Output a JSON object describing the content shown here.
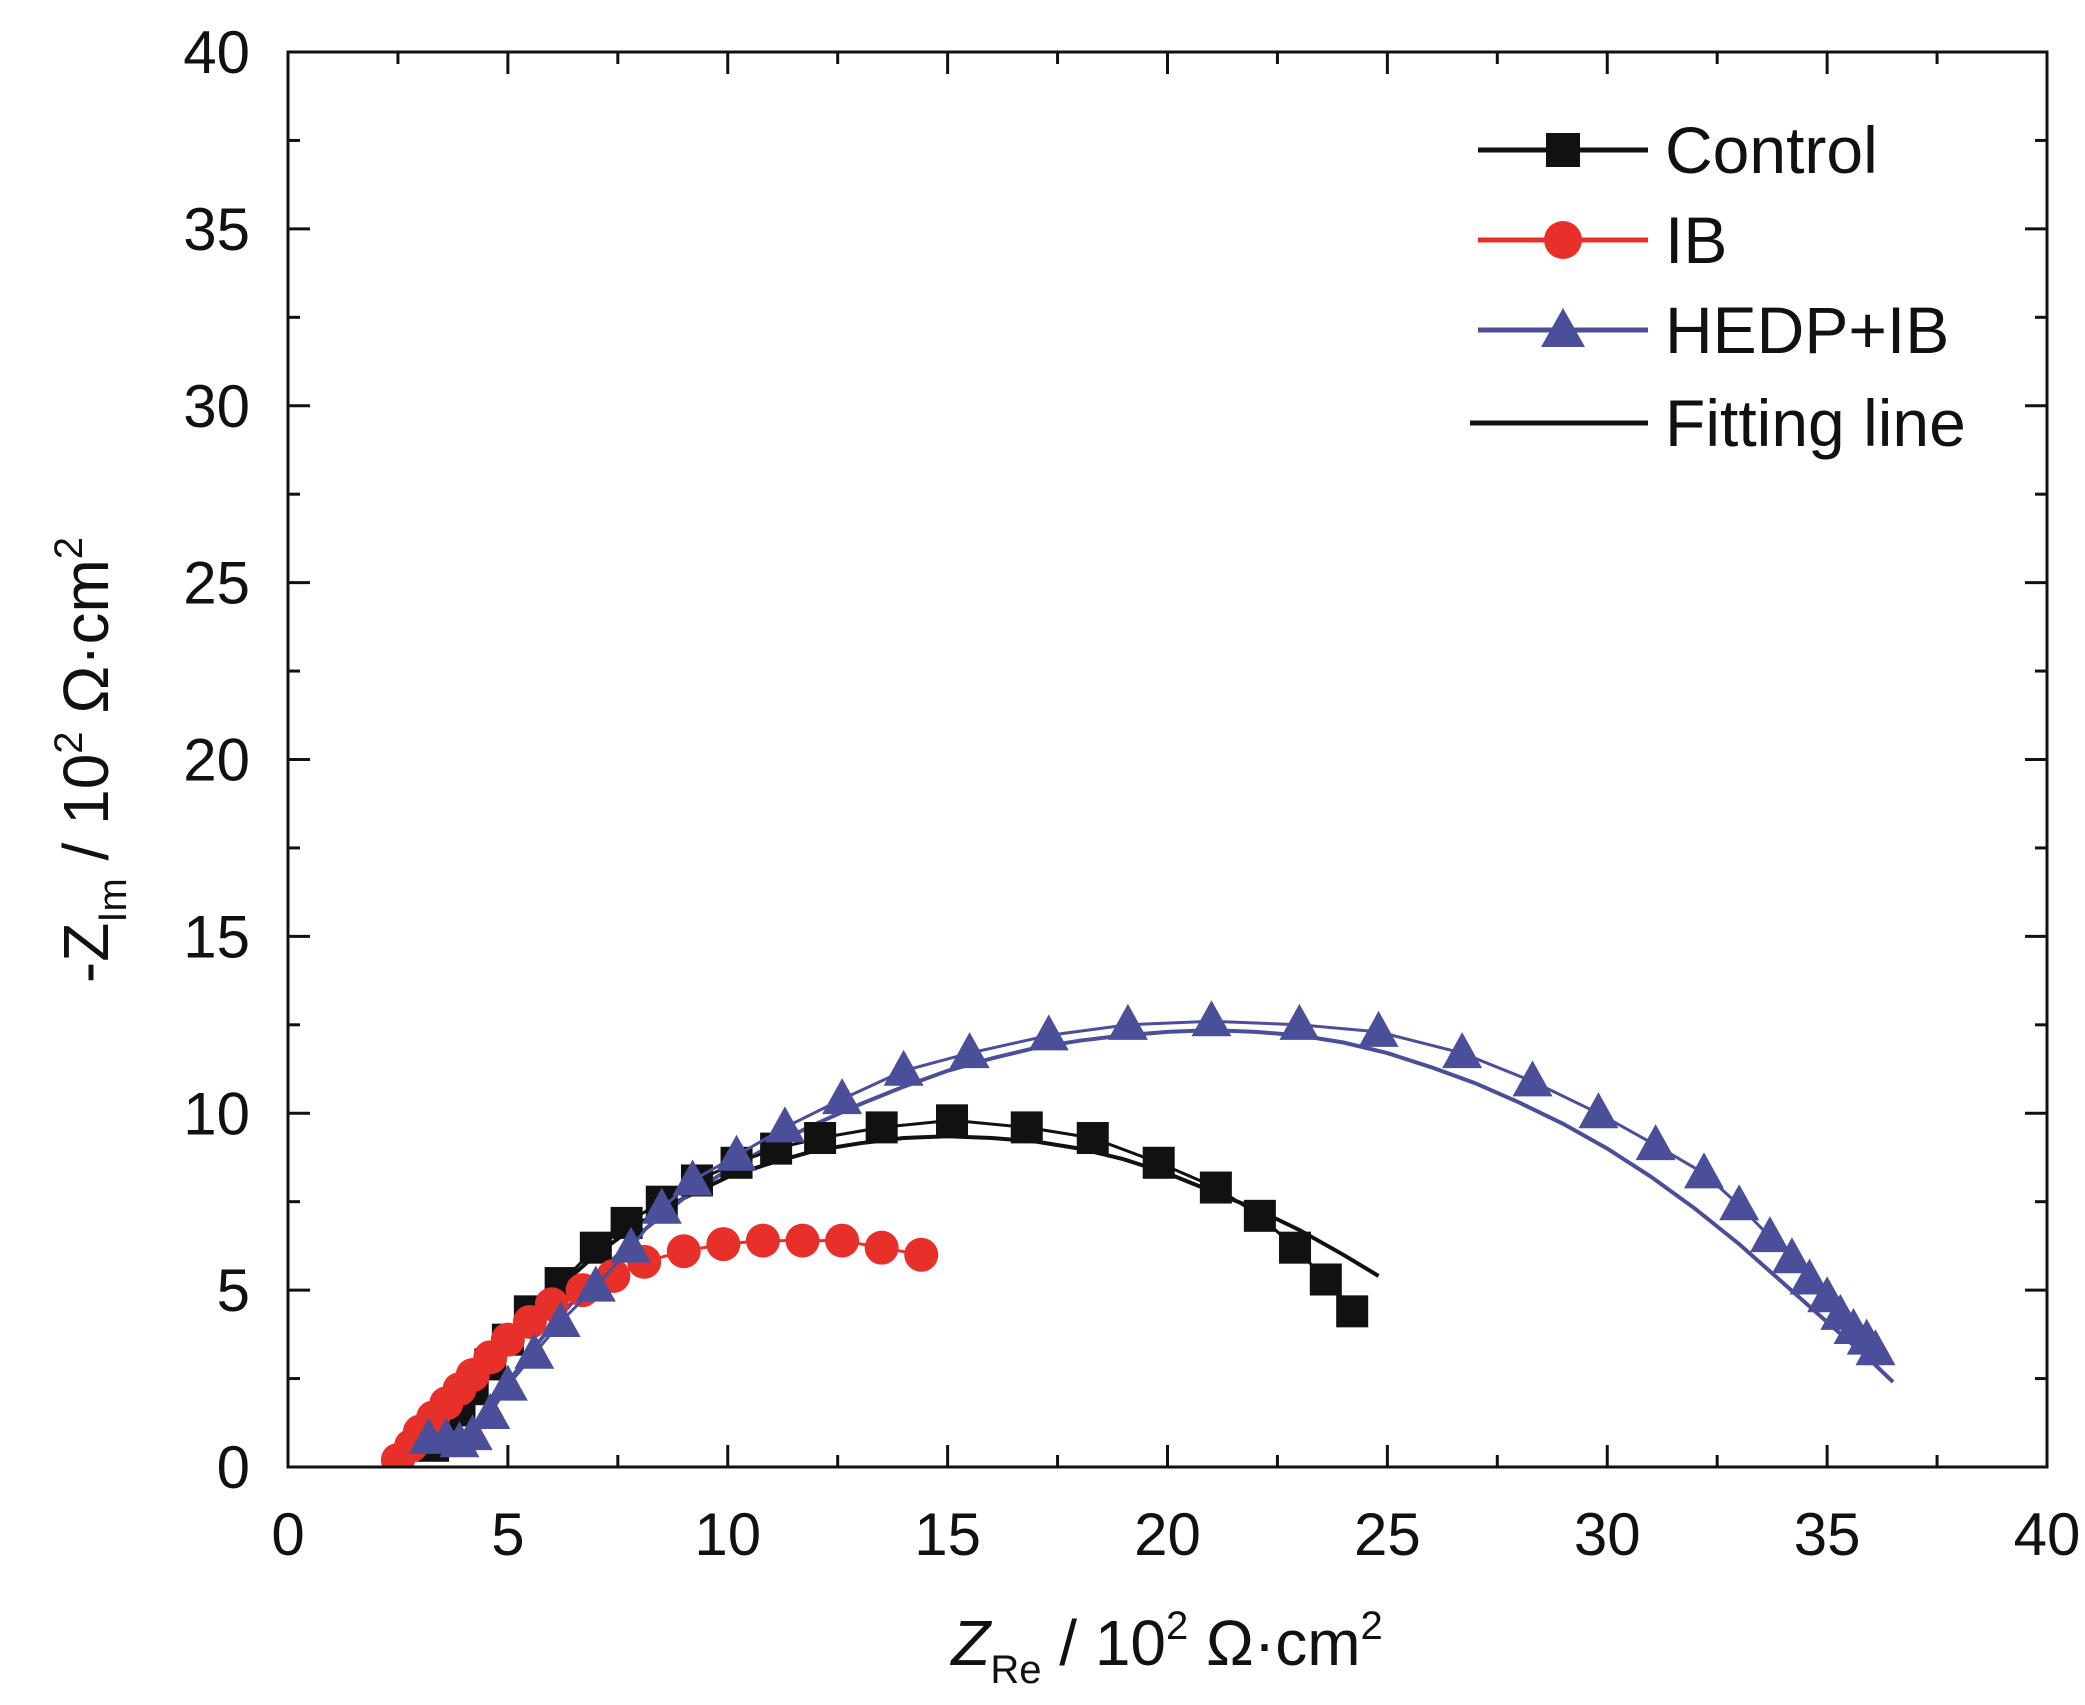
{
  "chart_data": {
    "type": "scatter",
    "title": "",
    "xlabel": {
      "main": "Z",
      "sub": "Re",
      "rest": " / 10",
      "sup": "2",
      "unit": " Ω·cm",
      "unit_sup": "2"
    },
    "ylabel": {
      "prefix": "-Z",
      "sub": "Im",
      "rest": " / 10",
      "sup": "2",
      "unit": " Ω·cm",
      "unit_sup": "2"
    },
    "xlim": [
      0,
      40
    ],
    "ylim": [
      0,
      40
    ],
    "xticks": [
      "0",
      "5",
      "10",
      "15",
      "20",
      "25",
      "30",
      "35",
      "40"
    ],
    "yticks": [
      "0",
      "5",
      "10",
      "15",
      "20",
      "25",
      "30",
      "35",
      "40"
    ],
    "grid": false,
    "legend_position": "top-right",
    "legend": [
      "Control",
      "IB",
      "HEDP+IB",
      "Fitting line"
    ],
    "series": [
      {
        "name": "Control",
        "marker": "square",
        "color": "#111111",
        "x": [
          3.3,
          3.6,
          3.9,
          4.2,
          4.6,
          5.0,
          5.5,
          6.2,
          7.0,
          7.7,
          8.5,
          9.3,
          10.2,
          11.1,
          12.1,
          13.5,
          15.1,
          16.8,
          18.3,
          19.8,
          21.1,
          22.1,
          22.9,
          23.6,
          24.2
        ],
        "y": [
          0.6,
          1.0,
          1.6,
          2.2,
          2.9,
          3.6,
          4.4,
          5.2,
          6.2,
          6.9,
          7.5,
          8.1,
          8.6,
          9.0,
          9.3,
          9.6,
          9.8,
          9.6,
          9.3,
          8.6,
          7.9,
          7.1,
          6.2,
          5.3,
          4.4
        ]
      },
      {
        "name": "IB",
        "marker": "circle",
        "color": "#e8302b",
        "x": [
          2.5,
          2.8,
          3.0,
          3.3,
          3.6,
          3.9,
          4.2,
          4.6,
          5.0,
          5.5,
          6.0,
          6.7,
          7.4,
          8.1,
          9.0,
          9.9,
          10.8,
          11.7,
          12.6,
          13.5,
          14.4
        ],
        "y": [
          0.2,
          0.6,
          1.0,
          1.4,
          1.8,
          2.2,
          2.6,
          3.1,
          3.6,
          4.1,
          4.6,
          5.0,
          5.4,
          5.8,
          6.1,
          6.3,
          6.4,
          6.4,
          6.4,
          6.2,
          6.0
        ]
      },
      {
        "name": "HEDP+IB",
        "marker": "triangle",
        "color": "#4b4f99",
        "x": [
          3.2,
          3.6,
          3.9,
          4.2,
          4.6,
          5.0,
          5.6,
          6.2,
          7.0,
          7.8,
          8.5,
          9.2,
          10.2,
          11.3,
          12.6,
          14.0,
          15.5,
          17.3,
          19.1,
          21.0,
          23.0,
          24.8,
          26.7,
          28.3,
          29.8,
          31.1,
          32.2,
          33.0,
          33.7,
          34.2,
          34.6,
          35.0,
          35.3,
          35.6,
          35.9,
          36.1
        ],
        "y": [
          0.8,
          0.8,
          0.7,
          0.9,
          1.5,
          2.3,
          3.2,
          4.1,
          5.1,
          6.2,
          7.3,
          8.1,
          8.8,
          9.6,
          10.4,
          11.2,
          11.7,
          12.2,
          12.5,
          12.6,
          12.5,
          12.3,
          11.7,
          10.9,
          10.0,
          9.1,
          8.3,
          7.4,
          6.5,
          5.9,
          5.3,
          4.8,
          4.3,
          3.9,
          3.6,
          3.3
        ]
      }
    ],
    "fits": [
      {
        "name": "Fitting line",
        "of": "Control",
        "color": "#111111",
        "x": [
          3.3,
          4.0,
          5.0,
          6.0,
          7.0,
          8.0,
          9.0,
          10.0,
          11.0,
          12.0,
          13.0,
          14.0,
          15.0,
          16.0,
          17.0,
          18.0,
          19.0,
          20.0,
          21.0,
          22.0,
          23.0,
          24.0,
          24.8
        ],
        "y": [
          0.6,
          2.0,
          3.6,
          4.9,
          6.0,
          6.9,
          7.6,
          8.2,
          8.6,
          8.95,
          9.15,
          9.3,
          9.35,
          9.3,
          9.2,
          9.0,
          8.7,
          8.3,
          7.8,
          7.3,
          6.7,
          6.0,
          5.4
        ]
      },
      {
        "name": "Fitting line",
        "of": "IB",
        "color": "#e8302b",
        "x": [
          2.5,
          3.0,
          3.5,
          4.0,
          4.5,
          5.0,
          5.5,
          6.0,
          6.5,
          7.0
        ],
        "y": [
          0.2,
          1.0,
          1.7,
          2.4,
          3.0,
          3.6,
          4.0,
          4.5,
          4.8,
          5.1
        ]
      },
      {
        "name": "Fitting line",
        "of": "HEDP+IB",
        "color": "#4b4f99",
        "x": [
          4.3,
          5.0,
          6.0,
          7.0,
          8.0,
          9.0,
          10.0,
          11.0,
          12.0,
          13.0,
          14.0,
          15.0,
          16.0,
          17.0,
          18.0,
          19.0,
          20.0,
          21.0,
          22.0,
          23.0,
          24.0,
          25.0,
          26.0,
          27.0,
          28.0,
          29.0,
          30.0,
          31.0,
          32.0,
          33.0,
          34.0,
          35.0,
          36.0,
          36.5
        ],
        "y": [
          1.0,
          2.4,
          4.0,
          5.4,
          6.6,
          7.6,
          8.4,
          9.1,
          9.7,
          10.25,
          10.75,
          11.2,
          11.55,
          11.85,
          12.05,
          12.2,
          12.3,
          12.35,
          12.3,
          12.2,
          12.0,
          11.7,
          11.3,
          10.85,
          10.3,
          9.7,
          9.0,
          8.2,
          7.3,
          6.3,
          5.2,
          4.1,
          3.0,
          2.4
        ]
      }
    ]
  }
}
